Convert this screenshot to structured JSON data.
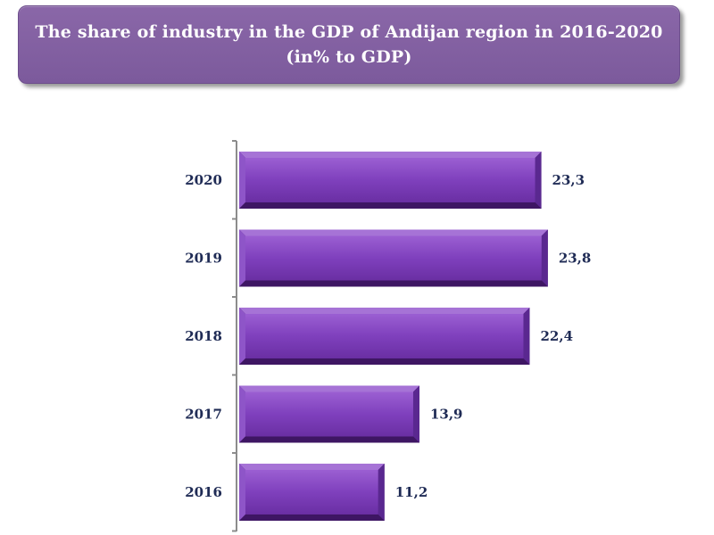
{
  "header": {
    "title_line1": "The share of industry in the GDP of Andijan region in 2016-2020",
    "title_line2": "(in% to GDP)"
  },
  "colors": {
    "bar": "#7b3fb3",
    "bar_dark": "#4a1f73",
    "bar_light": "#a673d6",
    "axis": "#8c8c8c",
    "label": "#1f2b55"
  },
  "chart_data": {
    "type": "bar",
    "orientation": "horizontal",
    "title": "The share of industry in the GDP of Andijan region in 2016-2020 (in% to GDP)",
    "categories": [
      "2020",
      "2019",
      "2018",
      "2017",
      "2016"
    ],
    "values": [
      23.3,
      23.8,
      22.4,
      13.9,
      11.2
    ],
    "value_labels": [
      "23,3",
      "23,8",
      "22,4",
      "13,9",
      "11,2"
    ],
    "xlim": [
      0,
      25
    ],
    "grid": false,
    "legend": "none"
  }
}
